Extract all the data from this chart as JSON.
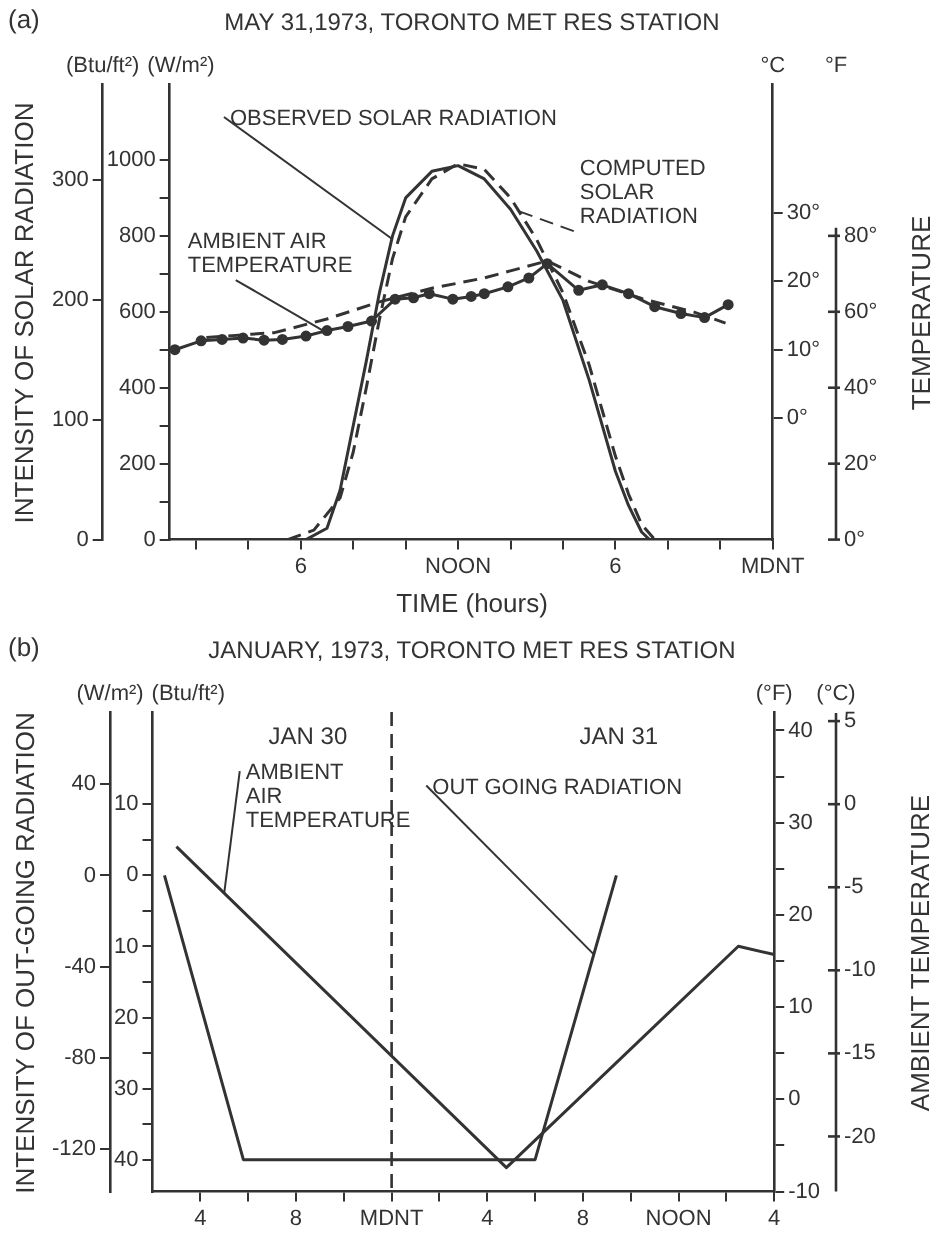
{
  "chart_data": [
    {
      "type": "line",
      "title": "MAY 31,1973, TORONTO MET RES STATION",
      "xlabel": "TIME (hours)",
      "ylabel": "(W/m²)",
      "y2label": "°C",
      "y3label": "(Btu/ft²)",
      "annotations": [
        "(a)",
        "INTENSITY OF SOLAR RADIATION",
        "TEMPERATURE",
        "°F",
        "0°",
        "20°",
        "40°",
        "60°",
        "80°"
      ],
      "grid": false,
      "legend": false,
      "xlim": [
        "1973-05-31T01:00",
        "1973-06-01T00:00"
      ],
      "xticks": [
        {
          "value": "1973-05-31T02:00",
          "label": null
        },
        {
          "value": "1973-05-31T04:00",
          "label": null
        },
        {
          "value": "1973-05-31T06:00",
          "label": "6"
        },
        {
          "value": "1973-05-31T08:00",
          "label": null
        },
        {
          "value": "1973-05-31T10:00",
          "label": null
        },
        {
          "value": "1973-05-31T12:00",
          "label": "NOON"
        },
        {
          "value": "1973-05-31T14:00",
          "label": null
        },
        {
          "value": "1973-05-31T16:00",
          "label": null
        },
        {
          "value": "1973-05-31T18:00",
          "label": "6"
        },
        {
          "value": "1973-05-31T20:00",
          "label": null
        },
        {
          "value": "1973-05-31T22:00",
          "label": null
        },
        {
          "value": "1973-06-01T00:00",
          "label": "MDNT"
        }
      ],
      "ylim": [
        0,
        1200
      ],
      "yticks": [
        0,
        {
          "value": 100,
          "label": null
        },
        200,
        {
          "value": 300,
          "label": null
        },
        400,
        {
          "value": 500,
          "label": null
        },
        600,
        {
          "value": 700,
          "label": null
        },
        800,
        {
          "value": 900,
          "label": null
        },
        1000
      ],
      "y2lim": [
        -17.8,
        48.9
      ],
      "y2ticks": [
        {
          "value": 0,
          "label": "0°"
        },
        {
          "value": 10,
          "label": "10°"
        },
        {
          "value": 20,
          "label": "20°"
        },
        {
          "value": 30,
          "label": "30°"
        }
      ],
      "y3lim": [
        0,
        380
      ],
      "y3ticks": [
        0,
        100,
        200,
        300
      ],
      "series": [
        {
          "name": "OBSERVED SOLAR RADIATION",
          "color": "#333333",
          "line_style": "solid",
          "marker": "none",
          "x": [
            "1973-05-31T06:12",
            "1973-05-31T07:00",
            "1973-05-31T07:30",
            "1973-05-31T08:00",
            "1973-05-31T08:30",
            "1973-05-31T09:00",
            "1973-05-31T09:30",
            "1973-05-31T10:00",
            "1973-05-31T11:00",
            "1973-05-31T12:00",
            "1973-05-31T13:00",
            "1973-05-31T14:00",
            "1973-05-31T15:00",
            "1973-05-31T16:00",
            "1973-05-31T17:00",
            "1973-05-31T17:30",
            "1973-05-31T18:00",
            "1973-05-31T18:30",
            "1973-05-31T19:00",
            "1973-05-31T19:18"
          ],
          "values": [
            0,
            30,
            130,
            300,
            470,
            650,
            800,
            900,
            970,
            985,
            950,
            870,
            760,
            630,
            420,
            300,
            180,
            90,
            20,
            0
          ]
        },
        {
          "name": "COMPUTED SOLAR RADIATION",
          "color": "#333333",
          "line_style": "dashed",
          "marker": "none",
          "x": [
            "1973-05-31T05:30",
            "1973-05-31T06:30",
            "1973-05-31T07:30",
            "1973-05-31T08:00",
            "1973-05-31T08:30",
            "1973-05-31T09:00",
            "1973-05-31T09:30",
            "1973-05-31T10:00",
            "1973-05-31T11:00",
            "1973-05-31T12:00",
            "1973-05-31T13:00",
            "1973-05-31T14:00",
            "1973-05-31T15:00",
            "1973-05-31T16:00",
            "1973-05-31T17:00",
            "1973-05-31T17:30",
            "1973-05-31T18:00",
            "1973-05-31T18:30",
            "1973-05-31T19:00",
            "1973-05-31T19:30"
          ],
          "values": [
            0,
            25,
            110,
            230,
            400,
            580,
            740,
            850,
            950,
            990,
            975,
            900,
            790,
            650,
            460,
            340,
            220,
            120,
            40,
            0
          ]
        },
        {
          "name": "AMBIENT AIR TEMPERATURE",
          "color": "#333333",
          "line_style": "solid",
          "marker": "circle",
          "axis": "y2",
          "x": [
            "1973-05-31T01:12",
            "1973-05-31T02:12",
            "1973-05-31T03:00",
            "1973-05-31T03:48",
            "1973-05-31T04:36",
            "1973-05-31T05:18",
            "1973-05-31T06:12",
            "1973-05-31T07:00",
            "1973-05-31T07:48",
            "1973-05-31T08:42",
            "1973-05-31T09:36",
            "1973-05-31T10:18",
            "1973-05-31T10:54",
            "1973-05-31T11:48",
            "1973-05-31T12:30",
            "1973-05-31T13:00",
            "1973-05-31T13:54",
            "1973-05-31T14:42",
            "1973-05-31T15:24",
            "1973-05-31T16:36",
            "1973-05-31T17:30",
            "1973-05-31T18:30",
            "1973-05-31T19:30",
            "1973-05-31T20:30",
            "1973-05-31T21:24",
            "1973-05-31T22:18"
          ],
          "values": [
            10,
            11.3,
            11.5,
            11.7,
            11.4,
            11.5,
            12,
            12.8,
            13.4,
            14.2,
            17.4,
            17.6,
            18.2,
            17.4,
            17.8,
            18.2,
            19.2,
            20.5,
            22.6,
            18.7,
            19.5,
            18.2,
            16.3,
            15.3,
            14.7,
            16.6
          ]
        },
        {
          "color": "#333333",
          "line_style": "dashed",
          "marker": "none",
          "axis": "y2",
          "x": [
            "1973-05-31T02:24",
            "1973-05-31T05:00",
            "1973-05-31T07:00",
            "1973-05-31T09:00",
            "1973-05-31T11:00",
            "1973-05-31T13:00",
            "1973-05-31T15:24",
            "1973-05-31T17:00",
            "1973-05-31T19:00",
            "1973-05-31T21:00",
            "1973-05-31T22:12"
          ],
          "values": [
            11.8,
            12.5,
            14.5,
            17,
            19,
            20.5,
            23,
            20,
            17.5,
            15.5,
            13.9
          ]
        }
      ]
    },
    {
      "type": "line",
      "title": "JANUARY, 1973, TORONTO MET RES STATION",
      "ylabel": "(°F)",
      "y2label": "(Btu/ft²)",
      "y3label": "(W/m²)",
      "annotations": [
        "(b)",
        "INTENSITY OF OUT-GOING RADIATION",
        "AMBIENT TEMPERATURE",
        "(°C)",
        "5",
        "0",
        "-5",
        "-10",
        "-15",
        "-20",
        "JAN 30",
        "JAN 31"
      ],
      "grid": false,
      "legend": false,
      "xlim": [
        "1973-01-30T14:00",
        "1973-01-31T16:00"
      ],
      "xticks": [
        {
          "value": "1973-01-30T16:00",
          "label": "4"
        },
        {
          "value": "1973-01-30T18:00",
          "label": null
        },
        {
          "value": "1973-01-30T20:00",
          "label": "8"
        },
        {
          "value": "1973-01-30T22:00",
          "label": null
        },
        {
          "value": "1973-01-31T00:00",
          "label": "MDNT"
        },
        {
          "value": "1973-01-31T02:00",
          "label": null
        },
        {
          "value": "1973-01-31T04:00",
          "label": "4"
        },
        {
          "value": "1973-01-31T06:00",
          "label": null
        },
        {
          "value": "1973-01-31T08:00",
          "label": "8"
        },
        {
          "value": "1973-01-31T10:00",
          "label": null
        },
        {
          "value": "1973-01-31T12:00",
          "label": "NOON"
        },
        {
          "value": "1973-01-31T14:00",
          "label": null
        },
        {
          "value": "1973-01-31T16:00",
          "label": "4"
        }
      ],
      "ylim": [
        -10,
        42
      ],
      "yticks": [
        -10,
        {
          "value": -5,
          "label": null
        },
        0,
        {
          "value": 5,
          "label": null
        },
        10,
        {
          "value": 15,
          "label": null
        },
        20,
        {
          "value": 25,
          "label": null
        },
        30,
        {
          "value": 35,
          "label": null
        },
        40
      ],
      "y2lim": [
        44.5,
        -23
      ],
      "y2ticks": [
        {
          "value": -10,
          "label": "10"
        },
        {
          "value": -5,
          "label": null
        },
        0,
        {
          "value": 5,
          "label": null
        },
        10,
        {
          "value": 15,
          "label": null
        },
        20,
        {
          "value": 25,
          "label": null
        },
        30,
        {
          "value": 35,
          "label": null
        },
        40
      ],
      "y3lim": [
        -138.7,
        71.7
      ],
      "y3ticks": [
        -120,
        -80,
        -40,
        0,
        40
      ],
      "ref_lines": [
        {
          "axis": "x",
          "value": "1973-01-31T00:00",
          "line_style": "dashed",
          "color": "#333333"
        }
      ],
      "series": [
        {
          "name": "AMBIENT AIR TEMPERATURE",
          "color": "#333333",
          "line_style": "solid",
          "marker": "none",
          "x": [
            "1973-01-30T15:00",
            "1973-01-31T04:48",
            "1973-01-31T14:30",
            "1973-01-31T16:00"
          ],
          "values": [
            27.4,
            -7.4,
            16.6,
            15.7
          ]
        },
        {
          "name": "OUT GOING RADIATION",
          "color": "#333333",
          "line_style": "solid",
          "marker": "none",
          "axis": "y2",
          "x": [
            "1973-01-30T14:30",
            "1973-01-30T17:48",
            "1973-01-31T06:00",
            "1973-01-31T09:24"
          ],
          "values": [
            0,
            40,
            40,
            0
          ]
        }
      ]
    }
  ]
}
